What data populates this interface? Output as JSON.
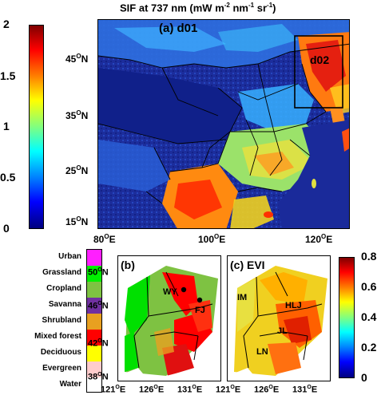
{
  "title": {
    "prefix": "SIF at 737 nm (mW m",
    "sup1": "-2",
    "mid1": " nm",
    "sup2": "-1",
    "mid2": " sr",
    "sup3": "-1",
    "suffix": ")"
  },
  "main_colorbar": {
    "ticks": [
      "2",
      "1.5",
      "1",
      "0.5",
      "0"
    ],
    "min": 0,
    "max": 2
  },
  "main_map": {
    "panel_label": "(a) d01",
    "subdomain_label": "d02",
    "lat_ticks": [
      {
        "deg": "45",
        "sup": "O",
        "hemi": "N"
      },
      {
        "deg": "35",
        "sup": "O",
        "hemi": "N"
      },
      {
        "deg": "25",
        "sup": "O",
        "hemi": "N"
      },
      {
        "deg": "15",
        "sup": "O",
        "hemi": "N"
      }
    ],
    "lon_ticks": [
      {
        "deg": "80",
        "sup": "O",
        "hemi": "E"
      },
      {
        "deg": "100",
        "sup": "O",
        "hemi": "E"
      },
      {
        "deg": "120",
        "sup": "O",
        "hemi": "E"
      }
    ]
  },
  "landcover_legend": {
    "categories": [
      {
        "label": "Urban",
        "color": "#ff1fff"
      },
      {
        "label": "Grassland",
        "color": "#00f000"
      },
      {
        "label": "Cropland",
        "color": "#7ec242"
      },
      {
        "label": "Savanna",
        "color": "#7030a0"
      },
      {
        "label": "Shrubland",
        "color": "#e8a020"
      },
      {
        "label": "Mixed forest",
        "color": "#ff0000"
      },
      {
        "label": "Deciduous",
        "color": "#ffff00"
      },
      {
        "label": "Evergreen",
        "color": "#ffcccc"
      },
      {
        "label": "Water",
        "color": "#ffffff"
      }
    ]
  },
  "panel_b": {
    "panel_label": "(b)",
    "sites": [
      {
        "name": "WY"
      },
      {
        "name": "FJ"
      }
    ],
    "lat_ticks": [
      {
        "deg": "50",
        "sup": "O",
        "hemi": "N"
      },
      {
        "deg": "46",
        "sup": "O",
        "hemi": "N"
      },
      {
        "deg": "42",
        "sup": "O",
        "hemi": "N"
      },
      {
        "deg": "38",
        "sup": "O",
        "hemi": "N"
      }
    ],
    "lon_ticks": [
      {
        "deg": "121",
        "sup": "O",
        "hemi": "E"
      },
      {
        "deg": "126",
        "sup": "O",
        "hemi": "E"
      },
      {
        "deg": "131",
        "sup": "O",
        "hemi": "E"
      }
    ]
  },
  "panel_c": {
    "panel_label": "(c) EVI",
    "region_labels": [
      "IM",
      "HLJ",
      "JL",
      "LN"
    ],
    "lon_ticks": [
      {
        "deg": "121",
        "sup": "O",
        "hemi": "E"
      },
      {
        "deg": "126",
        "sup": "O",
        "hemi": "E"
      },
      {
        "deg": "131",
        "sup": "O",
        "hemi": "E"
      }
    ]
  },
  "evi_colorbar": {
    "ticks": [
      "0.8",
      "0.6",
      "0.4",
      "0.2",
      "0"
    ],
    "min": 0,
    "max": 0.8
  },
  "colors": {
    "jet_top": "#7f0000",
    "jet_bottom": "#00007f",
    "ocean": "#1a2a9a"
  }
}
